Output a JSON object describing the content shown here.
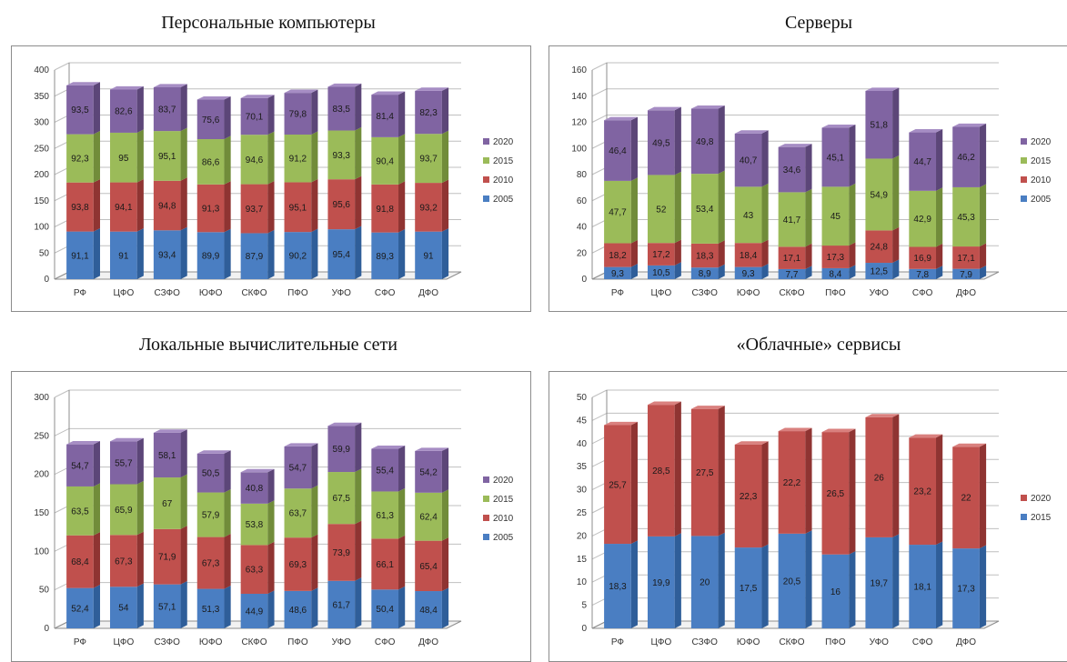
{
  "colors": {
    "2005": {
      "front": "#4a7ec2",
      "side": "#2f5e99",
      "top": "#7aa3d8"
    },
    "2010": {
      "front": "#c0504d",
      "side": "#8f3432",
      "top": "#d9807e"
    },
    "2015": {
      "front": "#9bbb59",
      "side": "#718c3a",
      "top": "#bcd585"
    },
    "2020": {
      "front": "#8064a2",
      "side": "#5c4678",
      "top": "#a68dc4"
    },
    "grid": "#bfbfbf",
    "axis": "#8c8c8c"
  },
  "chart_data": [
    {
      "type": "bar",
      "stacked": true,
      "title": "Персональные компьютеры",
      "categories": [
        "РФ",
        "ЦФО",
        "СЗФО",
        "ЮФО",
        "СКФО",
        "ПФО",
        "УФО",
        "СФО",
        "ДФО"
      ],
      "series": [
        {
          "name": "2005",
          "values": [
            91.1,
            91,
            93.4,
            89.9,
            87.9,
            90.2,
            95.4,
            89.3,
            91
          ],
          "labels": [
            "91,1",
            "91",
            "93,4",
            "89,9",
            "87,9",
            "90,2",
            "95,4",
            "89,3",
            "91"
          ]
        },
        {
          "name": "2010",
          "values": [
            93.8,
            94.1,
            94.8,
            91.3,
            93.7,
            95.1,
            95.6,
            91.8,
            93.2
          ],
          "labels": [
            "93,8",
            "94,1",
            "94,8",
            "91,3",
            "93,7",
            "95,1",
            "95,6",
            "91,8",
            "93,2"
          ]
        },
        {
          "name": "2015",
          "values": [
            92.3,
            95,
            95.1,
            86.6,
            94.6,
            91.2,
            93.3,
            90.4,
            93.7
          ],
          "labels": [
            "92,3",
            "95",
            "95,1",
            "86,6",
            "94,6",
            "91,2",
            "93,3",
            "90,4",
            "93,7"
          ]
        },
        {
          "name": "2020",
          "values": [
            93.5,
            82.6,
            83.7,
            75.6,
            70.1,
            79.8,
            83.5,
            81.4,
            82.3
          ],
          "labels": [
            "93,5",
            "82,6",
            "83,7",
            "75,6",
            "70,1",
            "79,8",
            "83,5",
            "81,4",
            "82,3"
          ]
        }
      ],
      "ylim": [
        0,
        400
      ],
      "yticks": [
        "0",
        "50",
        "100",
        "150",
        "200",
        "250",
        "300",
        "350",
        "400"
      ],
      "grid": true,
      "legend": [
        "2020",
        "2015",
        "2010",
        "2005"
      ],
      "legend_position": "right"
    },
    {
      "type": "bar",
      "stacked": true,
      "title": "Серверы",
      "categories": [
        "РФ",
        "ЦФО",
        "СЗФО",
        "ЮФО",
        "СКФО",
        "ПФО",
        "УФО",
        "СФО",
        "ДФО"
      ],
      "series": [
        {
          "name": "2005",
          "values": [
            9.3,
            10.5,
            8.9,
            9.3,
            7.7,
            8.4,
            12.5,
            7.8,
            7.9
          ],
          "labels": [
            "9,3",
            "10,5",
            "8,9",
            "9,3",
            "7,7",
            "8,4",
            "12,5",
            "7,8",
            "7,9"
          ]
        },
        {
          "name": "2010",
          "values": [
            18.2,
            17.2,
            18.3,
            18.4,
            17.1,
            17.3,
            24.8,
            16.9,
            17.1
          ],
          "labels": [
            "18,2",
            "17,2",
            "18,3",
            "18,4",
            "17,1",
            "17,3",
            "24,8",
            "16,9",
            "17,1"
          ]
        },
        {
          "name": "2015",
          "values": [
            47.7,
            52,
            53.4,
            43,
            41.7,
            45,
            54.9,
            42.9,
            45.3
          ],
          "labels": [
            "47,7",
            "52",
            "53,4",
            "43",
            "41,7",
            "45",
            "54,9",
            "42,9",
            "45,3"
          ]
        },
        {
          "name": "2020",
          "values": [
            46.4,
            49.5,
            49.8,
            40.7,
            34.6,
            45.1,
            51.8,
            44.7,
            46.2
          ],
          "labels": [
            "46,4",
            "49,5",
            "49,8",
            "40,7",
            "34,6",
            "45,1",
            "51,8",
            "44,7",
            "46,2"
          ]
        }
      ],
      "ylim": [
        0,
        160
      ],
      "yticks": [
        "0",
        "20",
        "40",
        "60",
        "80",
        "100",
        "120",
        "140",
        "160"
      ],
      "grid": true,
      "legend": [
        "2020",
        "2015",
        "2010",
        "2005"
      ],
      "legend_position": "right"
    },
    {
      "type": "bar",
      "stacked": true,
      "title": "Локальные вычислительные сети",
      "categories": [
        "РФ",
        "ЦФО",
        "СЗФО",
        "ЮФО",
        "СКФО",
        "ПФО",
        "УФО",
        "СФО",
        "ДФО"
      ],
      "series": [
        {
          "name": "2005",
          "values": [
            52.4,
            54,
            57.1,
            51.3,
            44.9,
            48.6,
            61.7,
            50.4,
            48.4
          ],
          "labels": [
            "52,4",
            "54",
            "57,1",
            "51,3",
            "44,9",
            "48,6",
            "61,7",
            "50,4",
            "48,4"
          ]
        },
        {
          "name": "2010",
          "values": [
            68.4,
            67.3,
            71.9,
            67.3,
            63.3,
            69.3,
            73.9,
            66.1,
            65.4
          ],
          "labels": [
            "68,4",
            "67,3",
            "71,9",
            "67,3",
            "63,3",
            "69,3",
            "73,9",
            "66,1",
            "65,4"
          ]
        },
        {
          "name": "2015",
          "values": [
            63.5,
            65.9,
            67,
            57.9,
            53.8,
            63.7,
            67.5,
            61.3,
            62.4
          ],
          "labels": [
            "63,5",
            "65,9",
            "67",
            "57,9",
            "53,8",
            "63,7",
            "67,5",
            "61,3",
            "62,4"
          ]
        },
        {
          "name": "2020",
          "values": [
            54.7,
            55.7,
            58.1,
            50.5,
            40.8,
            54.7,
            59.9,
            55.4,
            54.2
          ],
          "labels": [
            "54,7",
            "55,7",
            "58,1",
            "50,5",
            "40,8",
            "54,7",
            "59,9",
            "55,4",
            "54,2"
          ]
        }
      ],
      "ylim": [
        0,
        300
      ],
      "yticks": [
        "0",
        "50",
        "100",
        "150",
        "200",
        "250",
        "300"
      ],
      "grid": true,
      "legend": [
        "2020",
        "2015",
        "2010",
        "2005"
      ],
      "legend_position": "right"
    },
    {
      "type": "bar",
      "stacked": true,
      "title": "«Облачные» сервисы",
      "categories": [
        "РФ",
        "ЦФО",
        "СЗФО",
        "ЮФО",
        "СКФО",
        "ПФО",
        "УФО",
        "СФО",
        "ДФО"
      ],
      "series": [
        {
          "name": "2015",
          "values": [
            18.3,
            19.9,
            20,
            17.5,
            20.5,
            16,
            19.7,
            18.1,
            17.3
          ],
          "labels": [
            "18,3",
            "19,9",
            "20",
            "17,5",
            "20,5",
            "16",
            "19,7",
            "18,1",
            "17,3"
          ]
        },
        {
          "name": "2020",
          "values": [
            25.7,
            28.5,
            27.5,
            22.3,
            22.2,
            26.5,
            26,
            23.2,
            22
          ],
          "labels": [
            "25,7",
            "28,5",
            "27,5",
            "22,3",
            "22,2",
            "26,5",
            "26",
            "23,2",
            "22"
          ]
        }
      ],
      "series_colors": [
        "2005",
        "2010"
      ],
      "ylim": [
        0,
        50
      ],
      "yticks": [
        "0",
        "5",
        "10",
        "15",
        "20",
        "25",
        "30",
        "35",
        "40",
        "45",
        "50"
      ],
      "grid": true,
      "legend": [
        "2020",
        "2015"
      ],
      "legend_position": "right"
    }
  ]
}
